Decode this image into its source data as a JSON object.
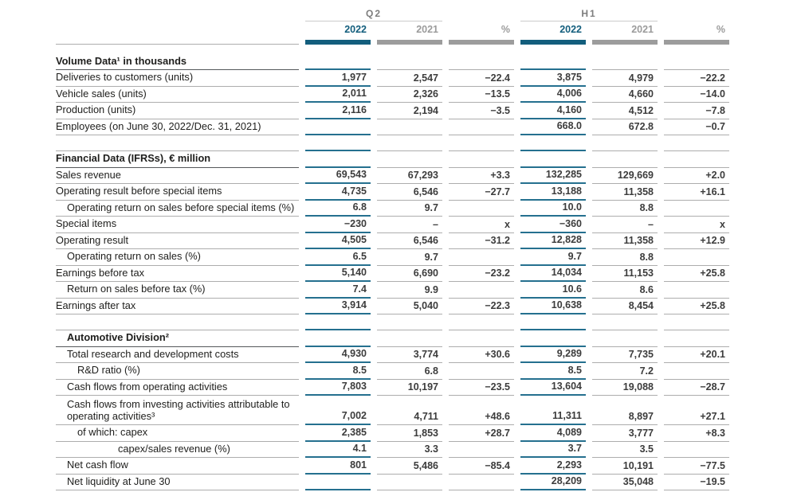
{
  "colors": {
    "accent_teal": "#135E7D",
    "teal_rule": "#25708F",
    "gray_bar": "#9C9C9C",
    "gray_rule": "#ADADAD",
    "section_rule": "#55585B"
  },
  "header": {
    "groups": [
      {
        "label": "Q2"
      },
      {
        "label": "H1"
      }
    ],
    "columns": [
      "2022",
      "2021",
      "%",
      "2022",
      "2021",
      "%"
    ]
  },
  "rows": [
    {
      "t": "section",
      "label": "Volume Data¹ in thousands",
      "h": 32
    },
    {
      "t": "data",
      "label": "Deliveries to customers (units)",
      "ind": 0,
      "v": [
        "1,977",
        "2,547",
        "−22.4",
        "3,875",
        "4,979",
        "−22.2"
      ]
    },
    {
      "t": "data",
      "label": "Vehicle sales (units)",
      "ind": 0,
      "v": [
        "2,011",
        "2,326",
        "−13.5",
        "4,006",
        "4,660",
        "−14.0"
      ]
    },
    {
      "t": "data",
      "label": "Production (units)",
      "ind": 0,
      "v": [
        "2,116",
        "2,194",
        "−3.5",
        "4,160",
        "4,512",
        "−7.8"
      ]
    },
    {
      "t": "data",
      "label": "Employees (on June 30, 2022/Dec. 31, 2021)",
      "ind": 0,
      "v": [
        "",
        "",
        "",
        "668.0",
        "672.8",
        "−0.7"
      ]
    },
    {
      "t": "spacer"
    },
    {
      "t": "section",
      "label": "Financial Data (IFRSs), € million"
    },
    {
      "t": "data",
      "label": "Sales revenue",
      "ind": 0,
      "v": [
        "69,543",
        "67,293",
        "+3.3",
        "132,285",
        "129,669",
        "+2.0"
      ]
    },
    {
      "t": "data",
      "label": "Operating result before special items",
      "ind": 0,
      "v": [
        "4,735",
        "6,546",
        "−27.7",
        "13,188",
        "11,358",
        "+16.1"
      ]
    },
    {
      "t": "data",
      "label": "Operating return on sales before special items (%)",
      "ind": 1,
      "v": [
        "6.8",
        "9.7",
        "",
        "10.0",
        "8.8",
        ""
      ]
    },
    {
      "t": "data",
      "label": "Special items",
      "ind": 0,
      "v": [
        "−230",
        "–",
        "x",
        "−360",
        "–",
        "x"
      ]
    },
    {
      "t": "data",
      "label": "Operating result",
      "ind": 0,
      "v": [
        "4,505",
        "6,546",
        "−31.2",
        "12,828",
        "11,358",
        "+12.9"
      ]
    },
    {
      "t": "data",
      "label": "Operating return on sales (%)",
      "ind": 1,
      "v": [
        "6.5",
        "9.7",
        "",
        "9.7",
        "8.8",
        ""
      ]
    },
    {
      "t": "data",
      "label": "Earnings before tax",
      "ind": 0,
      "v": [
        "5,140",
        "6,690",
        "−23.2",
        "14,034",
        "11,153",
        "+25.8"
      ]
    },
    {
      "t": "data",
      "label": "Return on sales before tax (%)",
      "ind": 1,
      "v": [
        "7.4",
        "9.9",
        "",
        "10.6",
        "8.6",
        ""
      ]
    },
    {
      "t": "data",
      "label": "Earnings after tax",
      "ind": 0,
      "v": [
        "3,914",
        "5,040",
        "−22.3",
        "10,638",
        "8,454",
        "+25.8"
      ]
    },
    {
      "t": "spacer"
    },
    {
      "t": "section",
      "label": "Automotive Division²",
      "ind": 1
    },
    {
      "t": "data",
      "label": "Total research and development costs",
      "ind": 1,
      "v": [
        "4,930",
        "3,774",
        "+30.6",
        "9,289",
        "7,735",
        "+20.1"
      ]
    },
    {
      "t": "data",
      "label": "R&D ratio (%)",
      "ind": 2,
      "v": [
        "8.5",
        "6.8",
        "",
        "8.5",
        "7.2",
        ""
      ]
    },
    {
      "t": "data",
      "label": "Cash flows from operating activities",
      "ind": 1,
      "v": [
        "7,803",
        "10,197",
        "−23.5",
        "13,604",
        "19,088",
        "−28.7"
      ]
    },
    {
      "t": "data",
      "label": "Cash flows from investing activities attributable to operating activities³",
      "ind": 1,
      "h": 37,
      "v": [
        "7,002",
        "4,711",
        "+48.6",
        "11,311",
        "8,897",
        "+27.1"
      ]
    },
    {
      "t": "data",
      "label": "of which: capex",
      "ind": 2,
      "v": [
        "2,385",
        "1,853",
        "+28.7",
        "4,089",
        "3,777",
        "+8.3"
      ]
    },
    {
      "t": "data",
      "label": "capex/sales revenue (%)",
      "ind": 3,
      "v": [
        "4.1",
        "3.3",
        "",
        "3.7",
        "3.5",
        ""
      ]
    },
    {
      "t": "data",
      "label": "Net cash flow",
      "ind": 1,
      "v": [
        "801",
        "5,486",
        "−85.4",
        "2,293",
        "10,191",
        "−77.5"
      ]
    },
    {
      "t": "data",
      "label": "Net liquidity at June 30",
      "ind": 1,
      "v": [
        "",
        "",
        "",
        "28,209",
        "35,048",
        "−19.5"
      ]
    }
  ]
}
